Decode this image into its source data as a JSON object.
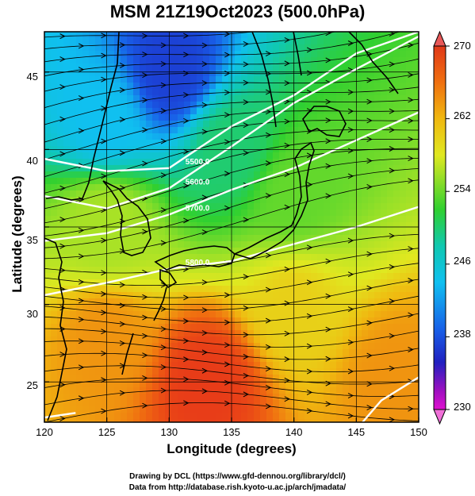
{
  "title": "MSM 21Z19Oct2023 (500.0hPa)",
  "x_axis": {
    "label": "Longitude (degrees)",
    "ticks": [
      "120",
      "125",
      "130",
      "135",
      "140",
      "145",
      "150"
    ]
  },
  "y_axis": {
    "label": "Latitude  (degrees)",
    "ticks": [
      "25",
      "30",
      "35",
      "40",
      "45"
    ]
  },
  "colorbar": {
    "ticks": [
      "270",
      "262",
      "254",
      "246",
      "238",
      "230"
    ]
  },
  "contour_labels": [
    "5800.0",
    "5700.0",
    "5600.0",
    "5500.0"
  ],
  "credits": {
    "line1": "Drawing by DCL (https://www.gfd-dennou.org/library/dcl/)",
    "line2": "Data from http://database.rish.kyoto-u.ac.jp/arch/jmadata/"
  },
  "chart_data": {
    "type": "heatmap",
    "title": "MSM 21Z19Oct2023 (500.0hPa)",
    "xlabel": "Longitude (degrees)",
    "ylabel": "Latitude  (degrees)",
    "xlim": [
      120,
      150
    ],
    "ylim": [
      22.4,
      47.6
    ],
    "color_range": [
      230,
      270
    ],
    "grid": true,
    "colors": {
      "low": "#e000e0",
      "c238": "#1a2fd8",
      "c246": "#10d8e8",
      "c254": "#20d020",
      "c262": "#d8e820",
      "high": "#e02010"
    },
    "temperature_field_approx": [
      {
        "lon": 130,
        "lat": 45,
        "value": 240
      },
      {
        "lon": 125,
        "lat": 42,
        "value": 246
      },
      {
        "lon": 135,
        "lat": 40,
        "value": 252
      },
      {
        "lon": 140,
        "lat": 37,
        "value": 256
      },
      {
        "lon": 125,
        "lat": 35,
        "value": 259
      },
      {
        "lon": 140,
        "lat": 30,
        "value": 263
      },
      {
        "lon": 125,
        "lat": 28,
        "value": 265
      },
      {
        "lon": 133,
        "lat": 25,
        "value": 268
      },
      {
        "lon": 148,
        "lat": 25,
        "value": 265
      }
    ],
    "height_contours": [
      {
        "value": 5800.0,
        "lon": [
          120,
          125,
          130,
          135,
          140,
          145,
          150
        ],
        "lat": [
          30.6,
          31.4,
          32.3,
          32.8,
          33.9,
          35.0,
          36.3
        ]
      },
      {
        "value": 5700.0,
        "lon": [
          120,
          125,
          130,
          135,
          140,
          145,
          150
        ],
        "lat": [
          34.1,
          34.6,
          35.8,
          37.4,
          38.8,
          40.6,
          42.4
        ]
      },
      {
        "value": 5600.0,
        "lon": [
          120,
          125,
          130,
          135,
          140,
          145,
          150
        ],
        "lat": [
          37.0,
          36.2,
          37.5,
          40.2,
          43.0,
          45.2,
          47.3
        ]
      },
      {
        "value": 5500.0,
        "lon": [
          120,
          125,
          130,
          135,
          140,
          145,
          150
        ],
        "lat": [
          39.4,
          38.6,
          38.8,
          41.5,
          43.5,
          46.2,
          47.6
        ]
      }
    ],
    "wind_flow": "predominantly westerly to west-southwesterly; anticyclonic circulation near 130-137E, 24-26N"
  }
}
